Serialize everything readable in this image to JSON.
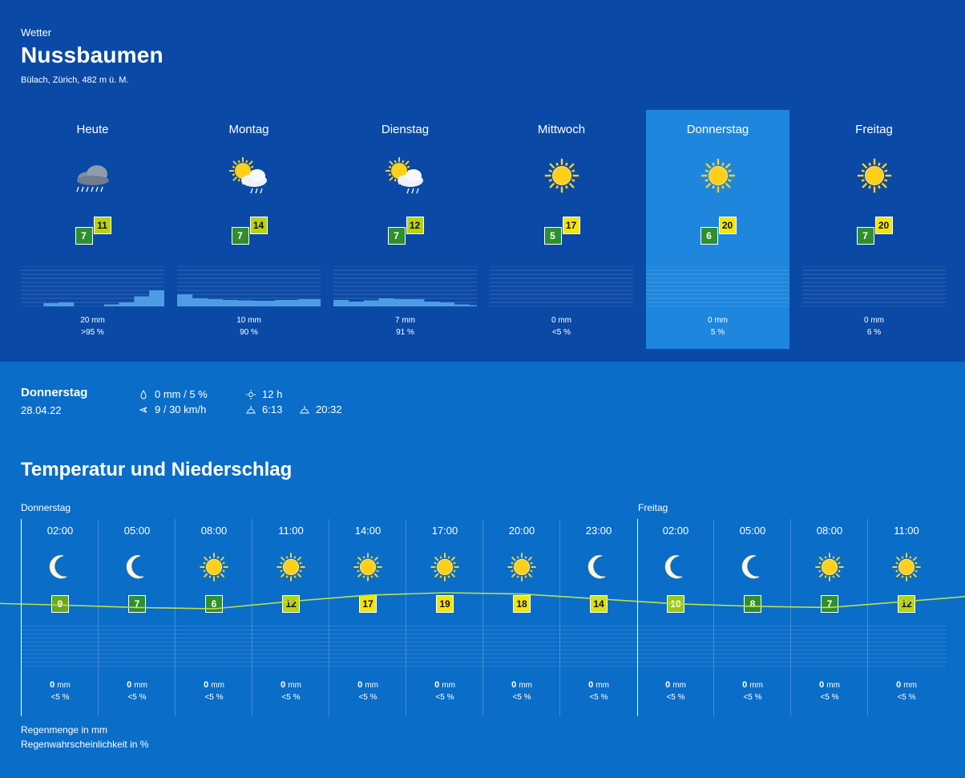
{
  "header": {
    "section": "Wetter",
    "place": "Nussbaumen",
    "location": "Bülach, Zürich, 482 m ü. M."
  },
  "colors": {
    "top_bg": "#0a4aa6",
    "bottom_bg": "#0a6dc8",
    "selected": "#1e86dd",
    "green": "#2f8f2f",
    "yellowgreen": "#b9d40f",
    "yellow": "#f2e40e",
    "sun": "#ffd21f"
  },
  "days": [
    {
      "name": "Heute",
      "icon": "rain-cloud-icon",
      "min": "7",
      "max": "11",
      "max_color": "#b9d40f",
      "mm": "20 mm",
      "pct": ">95 %",
      "precip": [
        0,
        0,
        0,
        0.08,
        0.08,
        0.1,
        0.1,
        0,
        0,
        0,
        0,
        0.05,
        0.05,
        0.1,
        0.1,
        0.25,
        0.25,
        0.4,
        0.4
      ],
      "selected": false
    },
    {
      "name": "Montag",
      "icon": "sun-cloud-rain-icon",
      "min": "7",
      "max": "14",
      "max_color": "#b9d40f",
      "mm": "10 mm",
      "pct": "90 %",
      "precip": [
        0.3,
        0.3,
        0.2,
        0.2,
        0.18,
        0.18,
        0.16,
        0.16,
        0.15,
        0.15,
        0.14,
        0.14,
        0.14,
        0.16,
        0.16,
        0.16,
        0.18,
        0.18,
        0.18
      ],
      "selected": false
    },
    {
      "name": "Dienstag",
      "icon": "sun-cloud-rain-icon",
      "min": "7",
      "max": "12",
      "max_color": "#b9d40f",
      "mm": "7 mm",
      "pct": "91 %",
      "precip": [
        0.16,
        0.16,
        0.12,
        0.12,
        0.15,
        0.15,
        0.2,
        0.2,
        0.18,
        0.18,
        0.18,
        0.18,
        0.12,
        0.12,
        0.1,
        0.1,
        0.05,
        0.05,
        0.03
      ],
      "selected": false
    },
    {
      "name": "Mittwoch",
      "icon": "sun-icon",
      "min": "5",
      "max": "17",
      "max_color": "#f2e40e",
      "mm": "0 mm",
      "pct": "<5 %",
      "precip": [],
      "selected": false
    },
    {
      "name": "Donnerstag",
      "icon": "sun-icon",
      "min": "6",
      "max": "20",
      "max_color": "#f2e40e",
      "mm": "0 mm",
      "pct": "5 %",
      "precip": [],
      "selected": true
    },
    {
      "name": "Freitag",
      "icon": "sun-icon",
      "min": "7",
      "max": "20",
      "max_color": "#f2e40e",
      "mm": "0 mm",
      "pct": "6 %",
      "precip": [],
      "selected": false
    }
  ],
  "selected_day": {
    "name": "Donnerstag",
    "date": "28.04.22",
    "precip": "0 mm / 5 %",
    "wind": "9 / 30 km/h",
    "sunshine": "12 h",
    "sunrise": "6:13",
    "sunset": "20:32"
  },
  "chart": {
    "title": "Temperatur und Niederschlag",
    "day1": "Donnerstag",
    "day2": "Freitag",
    "legend_mm": "Regenmenge in mm",
    "legend_pct": "Regenwahrscheinlichkeit in %"
  },
  "chart_data": {
    "type": "line",
    "x": [
      "02:00",
      "05:00",
      "08:00",
      "11:00",
      "14:00",
      "17:00",
      "20:00",
      "23:00",
      "02:00",
      "05:00",
      "08:00",
      "11:00"
    ],
    "series": [
      {
        "values": [
          9,
          7,
          6,
          12,
          17,
          19,
          18,
          14,
          10,
          8,
          7,
          12
        ]
      }
    ],
    "icons": [
      "moon-icon",
      "moon-icon",
      "sun-icon",
      "sun-icon",
      "sun-icon",
      "sun-icon",
      "sun-icon",
      "moon-icon",
      "moon-icon",
      "moon-icon",
      "sun-icon",
      "sun-icon"
    ],
    "temp_colors": [
      "#6aa820",
      "#2f8f2f",
      "#2f8f2f",
      "#b9d40f",
      "#f2e40e",
      "#f2e40e",
      "#f2e40e",
      "#d9e40e",
      "#9cc717",
      "#2f8f2f",
      "#2f8f2f",
      "#b9d40f"
    ],
    "rain_mm": [
      "0",
      "0",
      "0",
      "0",
      "0",
      "0",
      "0",
      "0",
      "0",
      "0",
      "0",
      "0"
    ],
    "rain_unit": "mm",
    "rain_pct": [
      "<5 %",
      "<5 %",
      "<5 %",
      "<5 %",
      "<5 %",
      "<5 %",
      "<5 %",
      "<5 %",
      "<5 %",
      "<5 %",
      "<5 %",
      "<5 %"
    ]
  }
}
